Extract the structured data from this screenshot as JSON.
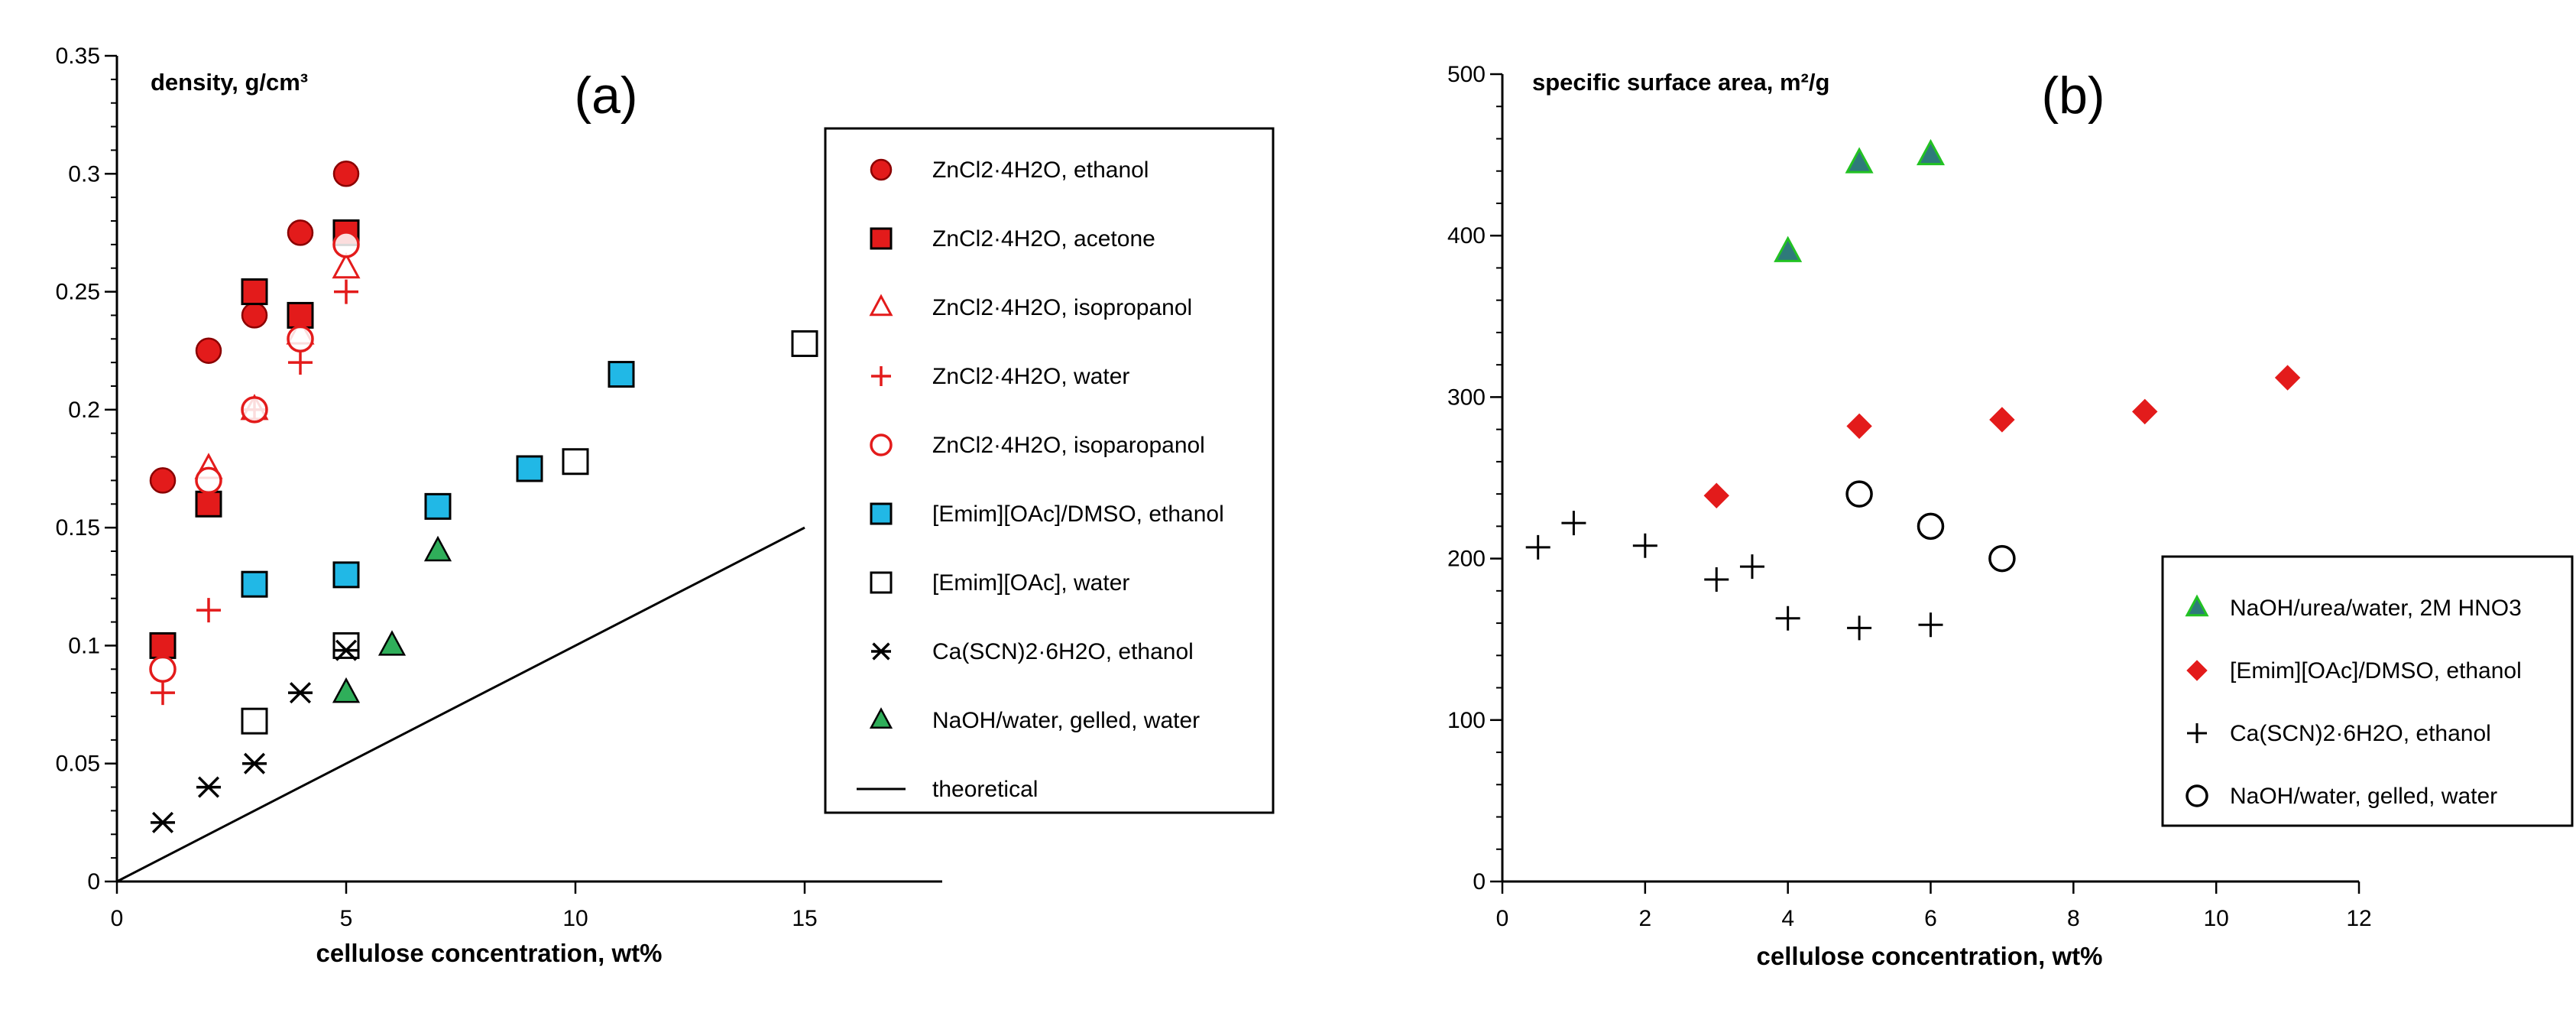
{
  "chart_data": [
    {
      "type": "scatter",
      "panel_label": "(a)",
      "ylabel": "density, g/cm³",
      "xlabel": "cellulose concentration, wt%",
      "xlim": [
        0,
        18
      ],
      "ylim": [
        0,
        0.35
      ],
      "xticks": [
        "0",
        "5",
        "10",
        "15"
      ],
      "xtick_values": [
        0,
        5,
        10,
        15
      ],
      "yticks": [
        "0",
        "0.05",
        "0.1",
        "0.15",
        "0.2",
        "0.25",
        "0.3",
        "0.35"
      ],
      "ytick_values": [
        0,
        0.05,
        0.1,
        0.15,
        0.2,
        0.25,
        0.3,
        0.35
      ],
      "legend_position": "right",
      "series": [
        {
          "name": "ZnCl2·4H2O, ethanol",
          "marker": "circle-filled",
          "color": "#e31b1b",
          "x": [
            1,
            2,
            3,
            4,
            5
          ],
          "y": [
            0.17,
            0.225,
            0.24,
            0.275,
            0.3
          ]
        },
        {
          "name": "ZnCl2·4H2O, acetone",
          "marker": "square-filled",
          "color": "#e31b1b",
          "x": [
            1,
            2,
            3,
            4,
            5
          ],
          "y": [
            0.1,
            0.16,
            0.25,
            0.24,
            0.275
          ]
        },
        {
          "name": "ZnCl2·4H2O, isopropanol",
          "marker": "triangle-open",
          "color": "#e31b1b",
          "x": [
            2,
            3,
            4,
            5
          ],
          "y": [
            0.175,
            0.2,
            0.232,
            0.26
          ]
        },
        {
          "name": "ZnCl2·4H2O, water",
          "marker": "plus",
          "color": "#e31b1b",
          "x": [
            1,
            2,
            3,
            4,
            5
          ],
          "y": [
            0.08,
            0.115,
            0.2,
            0.22,
            0.25
          ]
        },
        {
          "name": "ZnCl2·4H2O, isoparopanol",
          "marker": "circle-open",
          "color": "#e31b1b",
          "x": [
            1,
            2,
            3,
            4,
            5
          ],
          "y": [
            0.09,
            0.17,
            0.2,
            0.23,
            0.27
          ]
        },
        {
          "name": "[Emim][OAc]/DMSO, ethanol",
          "marker": "square-filled",
          "color": "#21b8e6",
          "x": [
            3,
            5,
            7,
            9,
            11
          ],
          "y": [
            0.126,
            0.13,
            0.159,
            0.175,
            0.215
          ]
        },
        {
          "name": "[Emim][OAc], water",
          "marker": "square-open",
          "color": "#000000",
          "x": [
            3,
            5,
            10,
            15
          ],
          "y": [
            0.068,
            0.1,
            0.178,
            0.228
          ]
        },
        {
          "name": "Ca(SCN)2·6H2O, ethanol",
          "marker": "asterisk",
          "color": "#000000",
          "x": [
            1,
            2,
            3,
            4,
            5
          ],
          "y": [
            0.025,
            0.04,
            0.05,
            0.08,
            0.098
          ]
        },
        {
          "name": "NaOH/water, gelled, water",
          "marker": "triangle-filled",
          "color": "#2fae5a",
          "x": [
            5,
            6,
            7
          ],
          "y": [
            0.08,
            0.1,
            0.14
          ]
        },
        {
          "name": "theoretical",
          "marker": "line",
          "color": "#000000",
          "x": [
            0,
            15
          ],
          "y": [
            0,
            0.15
          ]
        }
      ]
    },
    {
      "type": "scatter",
      "panel_label": "(b)",
      "ylabel": "specific surface area, m²/g",
      "xlabel": "cellulose concentration, wt%",
      "xlim": [
        0,
        12
      ],
      "ylim": [
        0,
        500
      ],
      "xticks": [
        "0",
        "2",
        "4",
        "6",
        "8",
        "10",
        "12"
      ],
      "xtick_values": [
        0,
        2,
        4,
        6,
        8,
        10,
        12
      ],
      "yticks": [
        "0",
        "100",
        "200",
        "300",
        "400",
        "500"
      ],
      "ytick_values": [
        0,
        100,
        200,
        300,
        400,
        500
      ],
      "legend_position": "bottom-right",
      "series": [
        {
          "name": "NaOH/urea/water, 2M HNO3",
          "marker": "triangle-teal",
          "color": "#2e7a7a",
          "x": [
            4,
            5,
            6
          ],
          "y": [
            390,
            445,
            450
          ]
        },
        {
          "name": "[Emim][OAc]/DMSO, ethanol",
          "marker": "diamond",
          "color": "#e31b1b",
          "x": [
            3,
            5,
            7,
            9,
            11
          ],
          "y": [
            239,
            282,
            286,
            291,
            312
          ]
        },
        {
          "name": "Ca(SCN)2·6H2O, ethanol",
          "marker": "plus-thin",
          "color": "#000000",
          "x": [
            0.5,
            1,
            2,
            3,
            3.5,
            4,
            5,
            6
          ],
          "y": [
            207,
            222,
            208,
            187,
            195,
            163,
            157,
            159
          ]
        },
        {
          "name": "NaOH/water, gelled, water",
          "marker": "circle-open",
          "color": "#000000",
          "x": [
            5,
            6,
            7
          ],
          "y": [
            240,
            220,
            200
          ]
        }
      ]
    }
  ]
}
